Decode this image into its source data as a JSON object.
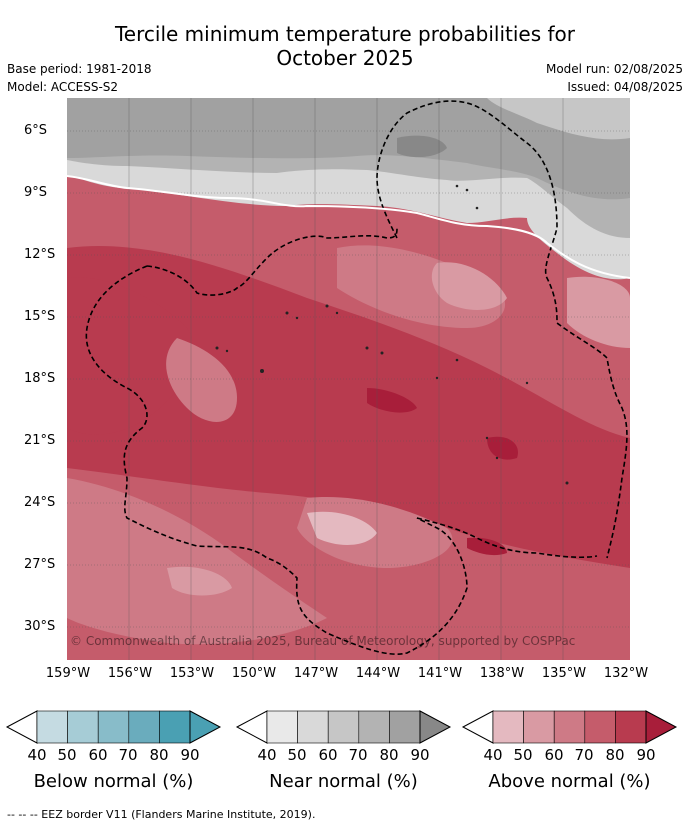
{
  "title_line1": "Tercile minimum temperature probabilities for",
  "title_line2": "October 2025",
  "base_period": "Base period: 1981-2018",
  "model": "Model: ACCESS-S2",
  "model_run": "Model run: 02/08/2025",
  "issued": "Issued: 04/08/2025",
  "copyright": "© Commonwealth of Australia 2025, Bureau of Meteorology, supported by COSPPac",
  "lat_labels": [
    "6°S",
    "9°S",
    "12°S",
    "15°S",
    "18°S",
    "21°S",
    "24°S",
    "27°S",
    "30°S"
  ],
  "lon_labels": [
    "159°W",
    "156°W",
    "153°W",
    "150°W",
    "147°W",
    "144°W",
    "141°W",
    "138°W",
    "135°W",
    "132°W"
  ],
  "colorbars": [
    {
      "label": "Below normal (%)",
      "ticks": [
        "40",
        "50",
        "60",
        "70",
        "80",
        "90"
      ],
      "colors": [
        "#c5dbe2",
        "#a6ccd6",
        "#88bcc9",
        "#6aacbd",
        "#4aa0b3"
      ]
    },
    {
      "label": "Near normal (%)",
      "ticks": [
        "40",
        "50",
        "60",
        "70",
        "80",
        "90"
      ],
      "colors": [
        "#e9e9e9",
        "#d9d9d9",
        "#c6c6c6",
        "#b3b3b3",
        "#a1a1a1",
        "#888888"
      ]
    },
    {
      "label": "Above normal (%)",
      "ticks": [
        "40",
        "50",
        "60",
        "70",
        "80",
        "90"
      ],
      "colors": [
        "#e4b9c0",
        "#d99aa3",
        "#ce7a86",
        "#c55c6b",
        "#b83b4f",
        "#a81e3a"
      ]
    }
  ],
  "eez_legend": "--  --  -- EEZ border V11 (Flanders Marine Institute, 2019)."
}
